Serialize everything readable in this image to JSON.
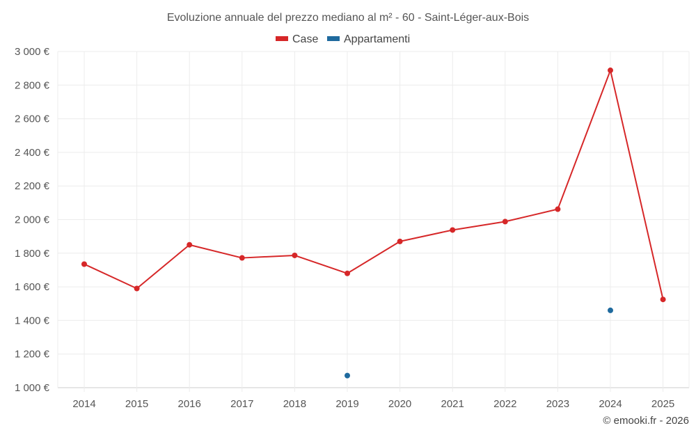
{
  "chart_data": {
    "type": "line",
    "title": "Evoluzione annuale del prezzo mediano al m² - 60 - Saint-Léger-aux-Bois",
    "categories": [
      "2014",
      "2015",
      "2016",
      "2017",
      "2018",
      "2019",
      "2020",
      "2021",
      "2022",
      "2023",
      "2024",
      "2025"
    ],
    "ylim": [
      1000,
      3000
    ],
    "yticks": [
      1000,
      1200,
      1400,
      1600,
      1800,
      2000,
      2200,
      2400,
      2600,
      2800,
      3000
    ],
    "ytick_labels": [
      "1 000 €",
      "1 200 €",
      "1 400 €",
      "1 600 €",
      "1 800 €",
      "2 000 €",
      "2 200 €",
      "2 400 €",
      "2 600 €",
      "2 800 €",
      "3 000 €"
    ],
    "grid": true,
    "legend_position": "top-center",
    "series": [
      {
        "name": "Case",
        "color": "#d62728",
        "style": "line-markers",
        "values": [
          1735,
          1590,
          1850,
          1772,
          1787,
          1680,
          1870,
          1938,
          1988,
          2062,
          2888,
          1525
        ]
      },
      {
        "name": "Appartamenti",
        "color": "#1f6a9e",
        "style": "markers",
        "values": [
          null,
          null,
          null,
          null,
          null,
          1072,
          null,
          null,
          null,
          null,
          1460,
          null
        ]
      }
    ]
  },
  "credit": "© emooki.fr - 2026"
}
